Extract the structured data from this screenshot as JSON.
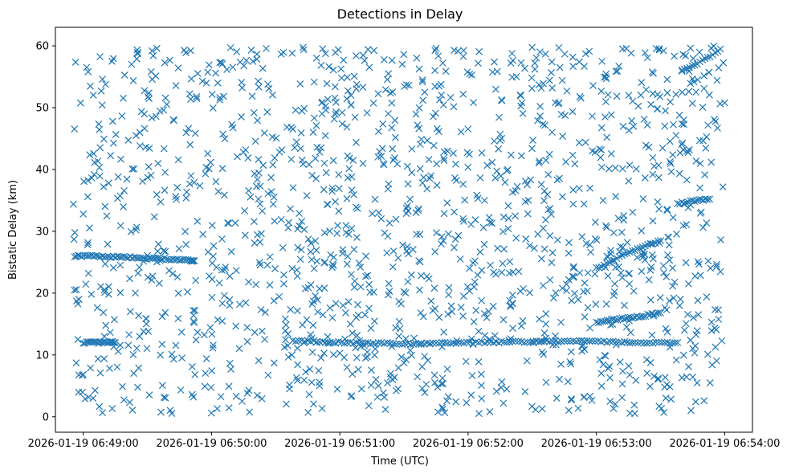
{
  "chart_data": {
    "type": "scatter",
    "title": "Detections in Delay",
    "xlabel": "Time (UTC)",
    "ylabel": "Bistatic Delay (km)",
    "x_ticks": [
      "2026-01-19 06:49:00",
      "2026-01-19 06:50:00",
      "2026-01-19 06:51:00",
      "2026-01-19 06:52:00",
      "2026-01-19 06:53:00",
      "2026-01-19 06:54:00"
    ],
    "y_ticks": [
      0,
      10,
      20,
      30,
      40,
      50,
      60
    ],
    "xlim": [
      "2026-01-19 06:48:47",
      "2026-01-19 06:54:13"
    ],
    "ylim": [
      -2.5,
      63
    ],
    "grid": false,
    "legend": "none",
    "marker": "x",
    "colors": {
      "series": "#1f77b4"
    },
    "series": [
      {
        "tracks": [
          {
            "t": [
              "2026-01-19 06:48:56",
              "2026-01-19 06:49:00",
              "2026-01-19 06:49:05",
              "2026-01-19 06:49:10",
              "2026-01-19 06:49:15",
              "2026-01-19 06:49:20",
              "2026-01-19 06:49:25",
              "2026-01-19 06:49:30",
              "2026-01-19 06:49:35",
              "2026-01-19 06:49:40",
              "2026-01-19 06:49:45",
              "2026-01-19 06:49:50",
              "2026-01-19 06:49:52"
            ],
            "delay": [
              26.0,
              26.0,
              26.0,
              25.9,
              25.9,
              25.8,
              25.7,
              25.6,
              25.6,
              25.5,
              25.4,
              25.3,
              25.2
            ]
          },
          {
            "t": [
              "2026-01-19 06:49:00",
              "2026-01-19 06:49:04",
              "2026-01-19 06:49:08",
              "2026-01-19 06:49:12",
              "2026-01-19 06:49:15"
            ],
            "delay": [
              12.0,
              12.0,
              12.0,
              12.0,
              12.0
            ]
          },
          {
            "t": [
              "2026-01-19 06:50:38",
              "2026-01-19 06:50:45",
              "2026-01-19 06:50:52",
              "2026-01-19 06:50:58",
              "2026-01-19 06:51:05",
              "2026-01-19 06:51:12",
              "2026-01-19 06:51:18",
              "2026-01-19 06:51:25",
              "2026-01-19 06:51:32",
              "2026-01-19 06:51:38",
              "2026-01-19 06:51:45",
              "2026-01-19 06:51:52",
              "2026-01-19 06:51:58",
              "2026-01-19 06:52:05",
              "2026-01-19 06:52:12",
              "2026-01-19 06:52:18",
              "2026-01-19 06:52:25",
              "2026-01-19 06:52:32",
              "2026-01-19 06:52:38",
              "2026-01-19 06:52:45",
              "2026-01-19 06:52:52",
              "2026-01-19 06:52:58",
              "2026-01-19 06:53:05",
              "2026-01-19 06:53:12",
              "2026-01-19 06:53:18",
              "2026-01-19 06:53:25",
              "2026-01-19 06:53:32",
              "2026-01-19 06:53:38"
            ],
            "delay": [
              12.3,
              12.2,
              12.1,
              12.0,
              12.0,
              11.9,
              11.9,
              11.8,
              11.8,
              11.8,
              11.9,
              11.9,
              12.0,
              12.0,
              12.0,
              12.1,
              12.1,
              12.1,
              12.2,
              12.2,
              12.2,
              12.2,
              12.1,
              12.1,
              12.0,
              12.0,
              12.0,
              12.0
            ]
          },
          {
            "t": [
              "2026-01-19 06:53:00",
              "2026-01-19 06:53:05",
              "2026-01-19 06:53:10",
              "2026-01-19 06:53:15",
              "2026-01-19 06:53:20",
              "2026-01-19 06:53:25",
              "2026-01-19 06:53:30"
            ],
            "delay": [
              15.2,
              15.5,
              15.8,
              16.0,
              16.2,
              16.5,
              16.8
            ]
          },
          {
            "t": [
              "2026-01-19 06:53:00",
              "2026-01-19 06:53:06",
              "2026-01-19 06:53:12",
              "2026-01-19 06:53:18",
              "2026-01-19 06:53:24",
              "2026-01-19 06:53:30"
            ],
            "delay": [
              24.0,
              25.0,
              26.0,
              27.0,
              27.8,
              28.5
            ]
          },
          {
            "t": [
              "2026-01-19 06:53:38",
              "2026-01-19 06:53:43",
              "2026-01-19 06:53:48",
              "2026-01-19 06:53:53"
            ],
            "delay": [
              34.5,
              34.8,
              35.0,
              35.2
            ]
          },
          {
            "t": [
              "2026-01-19 06:53:40",
              "2026-01-19 06:53:46",
              "2026-01-19 06:53:52",
              "2026-01-19 06:53:58"
            ],
            "delay": [
              56.0,
              57.0,
              58.0,
              59.5
            ]
          }
        ],
        "clutter": {
          "t_range": [
            "2026-01-19 06:48:55",
            "2026-01-19 06:54:00"
          ],
          "delay_range": [
            0.5,
            60
          ],
          "count": 1500
        }
      }
    ]
  }
}
